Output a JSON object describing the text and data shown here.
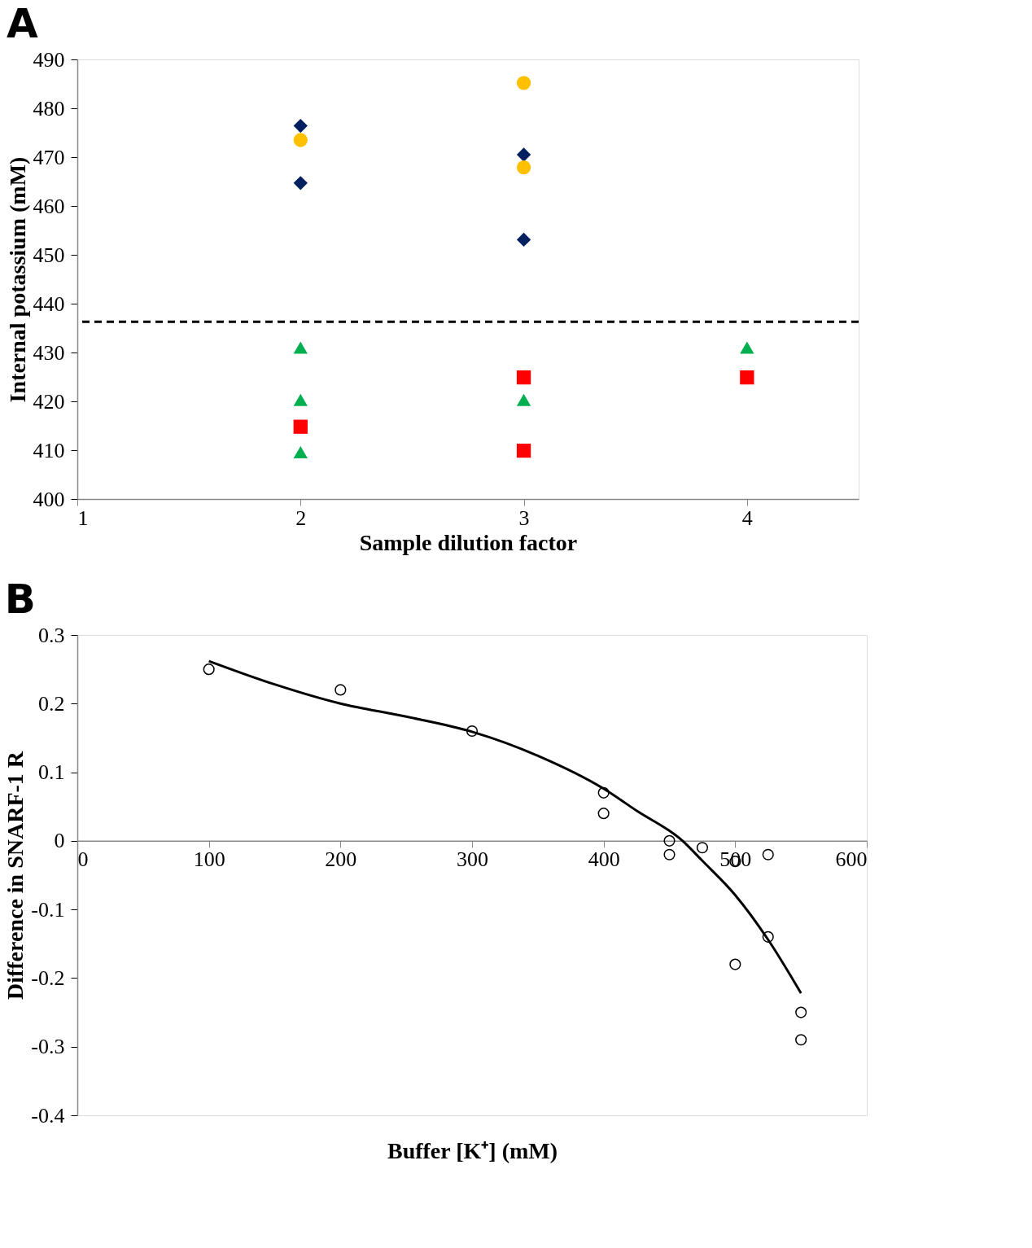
{
  "chart_data": [
    {
      "type": "scatter",
      "title": "A",
      "xlabel": "Sample dilution factor",
      "ylabel": "Internal potassium (mM)",
      "xlim": [
        1,
        4.5
      ],
      "xticks": [
        1,
        2,
        3,
        4
      ],
      "ylim": [
        400,
        490
      ],
      "yticks": [
        400,
        410,
        420,
        430,
        440,
        450,
        460,
        470,
        480,
        490
      ],
      "grid": false,
      "series": [
        {
          "color": "#002060",
          "marker": "diamond",
          "x": [
            2,
            2,
            3,
            3
          ],
          "values": [
            476.4,
            464.7,
            470.5,
            453.1
          ]
        },
        {
          "color": "#ffc000",
          "marker": "circle",
          "x": [
            2,
            3,
            3
          ],
          "values": [
            473.5,
            485.2,
            467.9
          ]
        },
        {
          "color": "#00b050",
          "marker": "triangle",
          "x": [
            2,
            2,
            2,
            3,
            4
          ],
          "values": [
            431.0,
            420.3,
            409.6,
            420.3,
            431.0
          ]
        },
        {
          "color": "#ff0000",
          "marker": "square",
          "x": [
            2,
            3,
            3,
            4
          ],
          "values": [
            414.8,
            424.9,
            409.9,
            424.9
          ]
        }
      ],
      "ref_lines": [
        {
          "axis": "y",
          "value": 436.3,
          "label": null,
          "color": "#000000",
          "line_style": "dashed"
        }
      ]
    },
    {
      "type": "scatter",
      "title": "B",
      "xlabel": "Buffer [K⁺] (mM)",
      "ylabel": "Difference in SNARF-1 R",
      "xlim": [
        0,
        600
      ],
      "xticks": [
        0,
        100,
        200,
        300,
        400,
        500,
        600
      ],
      "ylim": [
        -0.4,
        0.3
      ],
      "yticks": [
        {
          "value": -0.4,
          "label": "-0.4"
        },
        {
          "value": -0.3,
          "label": "-0.3"
        },
        {
          "value": -0.2,
          "label": "-0.2"
        },
        {
          "value": -0.1,
          "label": "-0.1"
        },
        0,
        0.1,
        0.2,
        0.3
      ],
      "grid": false,
      "series": [
        {
          "color": "#000000",
          "marker": "circle",
          "x": [
            100,
            200,
            300,
            400,
            400,
            450,
            450,
            475,
            500,
            500,
            525,
            525,
            550,
            550
          ],
          "values": [
            0.25,
            0.22,
            0.16,
            0.07,
            0.04,
            0,
            -0.02,
            -0.01,
            -0.03,
            -0.18,
            -0.02,
            -0.14,
            -0.25,
            -0.29
          ]
        },
        {
          "type": "line",
          "color": "#000000",
          "marker": "none",
          "line_style": "solid",
          "x": [
            100,
            150,
            200,
            250,
            300,
            350,
            400,
            425,
            460,
            475,
            500,
            525,
            550
          ],
          "values": [
            0.262,
            0.228,
            0.2,
            0.181,
            0.159,
            0.124,
            0.076,
            0.044,
            0,
            -0.029,
            -0.079,
            -0.144,
            -0.222
          ]
        }
      ]
    }
  ]
}
